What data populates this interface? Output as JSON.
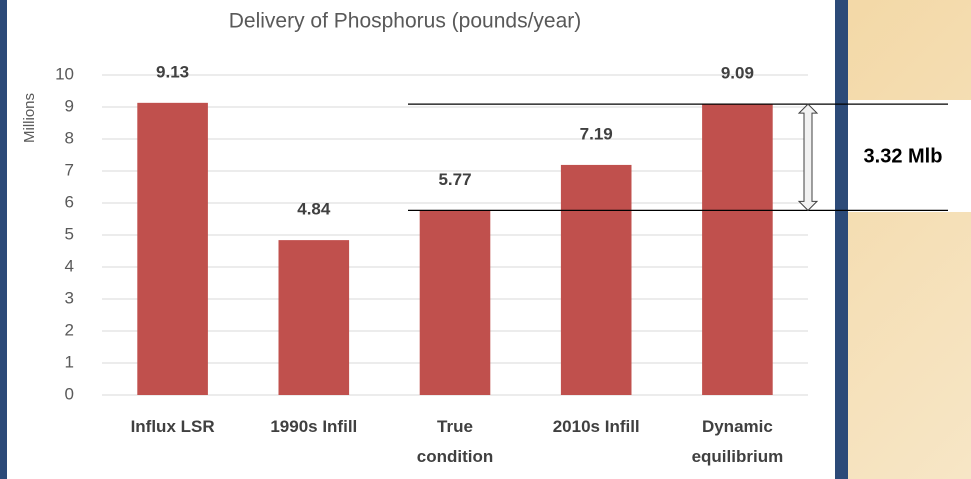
{
  "chart_data": {
    "type": "bar",
    "title": "Delivery of Phosphorus (pounds/year)",
    "y_label": "Millions",
    "categories": [
      "Influx LSR",
      "1990s Infill",
      "True\ncondition",
      "2010s Infill",
      "Dynamic\nequilibrium"
    ],
    "values": [
      9.13,
      4.84,
      5.77,
      7.19,
      9.09
    ],
    "value_labels": [
      "9.13",
      "4.84",
      "5.77",
      "7.19",
      "9.09"
    ],
    "color": "#c0504d",
    "ylim": [
      0,
      10
    ],
    "yticks": [
      0,
      1,
      2,
      3,
      4,
      5,
      6,
      7,
      8,
      9,
      10
    ],
    "grid": true,
    "annotation": "3.32 Mlb"
  }
}
